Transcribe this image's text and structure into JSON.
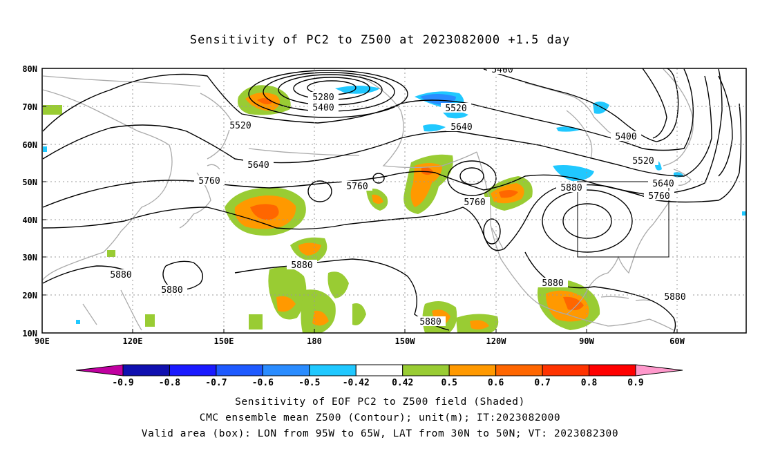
{
  "title": "Sensitivity of PC2 to Z500 at 2023082000 +1.5 day",
  "map": {
    "lat_labels": [
      "80N",
      "70N",
      "60N",
      "50N",
      "40N",
      "30N",
      "20N",
      "10N"
    ],
    "lon_labels": [
      "90E",
      "120E",
      "150E",
      "180",
      "150W",
      "120W",
      "90W",
      "60W"
    ],
    "contour_labels": [
      {
        "text": "5400"
      },
      {
        "text": "5280"
      },
      {
        "text": "5400"
      },
      {
        "text": "5520"
      },
      {
        "text": "5520"
      },
      {
        "text": "5640"
      },
      {
        "text": "5640"
      },
      {
        "text": "5760"
      },
      {
        "text": "5760"
      },
      {
        "text": "5760"
      },
      {
        "text": "5880"
      },
      {
        "text": "5880"
      },
      {
        "text": "5880"
      },
      {
        "text": "5880"
      },
      {
        "text": "5880"
      },
      {
        "text": "5880"
      },
      {
        "text": "5400"
      },
      {
        "text": "5520"
      },
      {
        "text": "5640"
      },
      {
        "text": "5760"
      }
    ],
    "colors": {
      "contour": "#000000",
      "coast": "#aaaaaa",
      "grid": "#999999"
    }
  },
  "colorbar": {
    "labels": [
      "-0.9",
      "-0.8",
      "-0.7",
      "-0.6",
      "-0.5",
      "-0.42",
      "0.42",
      "0.5",
      "0.6",
      "0.7",
      "0.8",
      "0.9"
    ],
    "colors": [
      "#c000a0",
      "#1010b0",
      "#1a1aff",
      "#1e5aff",
      "#2a8cff",
      "#20c8ff",
      "#ffffff",
      "#99cc33",
      "#ff9900",
      "#ff6600",
      "#ff3300",
      "#ff0000",
      "#ff99cc"
    ]
  },
  "captions": {
    "line1": "Sensitivity of EOF PC2 to Z500 field (Shaded)",
    "line2": "CMC ensemble mean Z500 (Contour); unit(m); IT:2023082000",
    "line3": "Valid area (box): LON from 95W to 65W, LAT from 30N to 50N; VT: 2023082300"
  }
}
